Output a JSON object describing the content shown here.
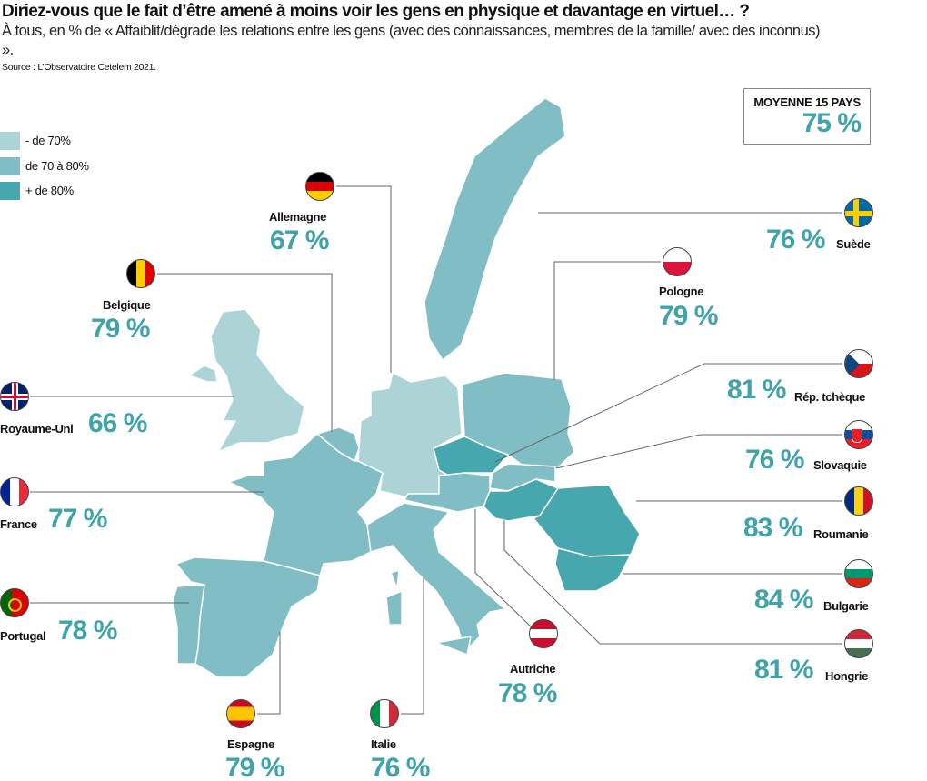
{
  "title": "Diriez-vous que le fait d’être amené à moins voir les gens en physique et davantage en virtuel… ?",
  "subtitle": "À tous, en % de « Affaiblit/dégrade les relations entre les gens (avec des connaissances, membres de la famille/ avec des inconnus) ».",
  "source": "Source : L’Observatoire Cetelem 2021.",
  "legend": [
    {
      "label": "- de 70%",
      "color": "#acd4d7"
    },
    {
      "label": "de 70 à 80%",
      "color": "#80bdc4"
    },
    {
      "label": "+ de 80%",
      "color": "#46a7ae"
    }
  ],
  "average": {
    "label": "MOYENNE 15 PAYS",
    "value": "75 %"
  },
  "countries": {
    "allemagne": {
      "name": "Allemagne",
      "pct": "67 %",
      "value": 67
    },
    "belgique": {
      "name": "Belgique",
      "pct": "79 %",
      "value": 79
    },
    "royaume_uni": {
      "name": "Royaume-Uni",
      "pct": "66 %",
      "value": 66
    },
    "france": {
      "name": "France",
      "pct": "77 %",
      "value": 77
    },
    "portugal": {
      "name": "Portugal",
      "pct": "78 %",
      "value": 78
    },
    "espagne": {
      "name": "Espagne",
      "pct": "79 %",
      "value": 79
    },
    "italie": {
      "name": "Italie",
      "pct": "76 %",
      "value": 76
    },
    "autriche": {
      "name": "Autriche",
      "pct": "78 %",
      "value": 78
    },
    "hongrie": {
      "name": "Hongrie",
      "pct": "81 %",
      "value": 81
    },
    "bulgarie": {
      "name": "Bulgarie",
      "pct": "84 %",
      "value": 84
    },
    "roumanie": {
      "name": "Roumanie",
      "pct": "83 %",
      "value": 83
    },
    "slovaquie": {
      "name": "Slovaquie",
      "pct": "76 %",
      "value": 76
    },
    "rep_tcheque": {
      "name": "Rép. tchèque",
      "pct": "81 %",
      "value": 81
    },
    "pologne": {
      "name": "Pologne",
      "pct": "79 %",
      "value": 79
    },
    "suede": {
      "name": "Suède",
      "pct": "76 %",
      "value": 76
    }
  }
}
